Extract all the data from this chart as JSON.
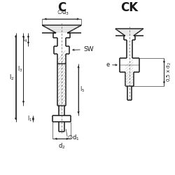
{
  "bg_color": "#ffffff",
  "line_color": "#1a1a1a",
  "title_C": "C",
  "title_CK": "CK",
  "fig_width": 2.5,
  "fig_height": 2.5,
  "dpi": 100
}
